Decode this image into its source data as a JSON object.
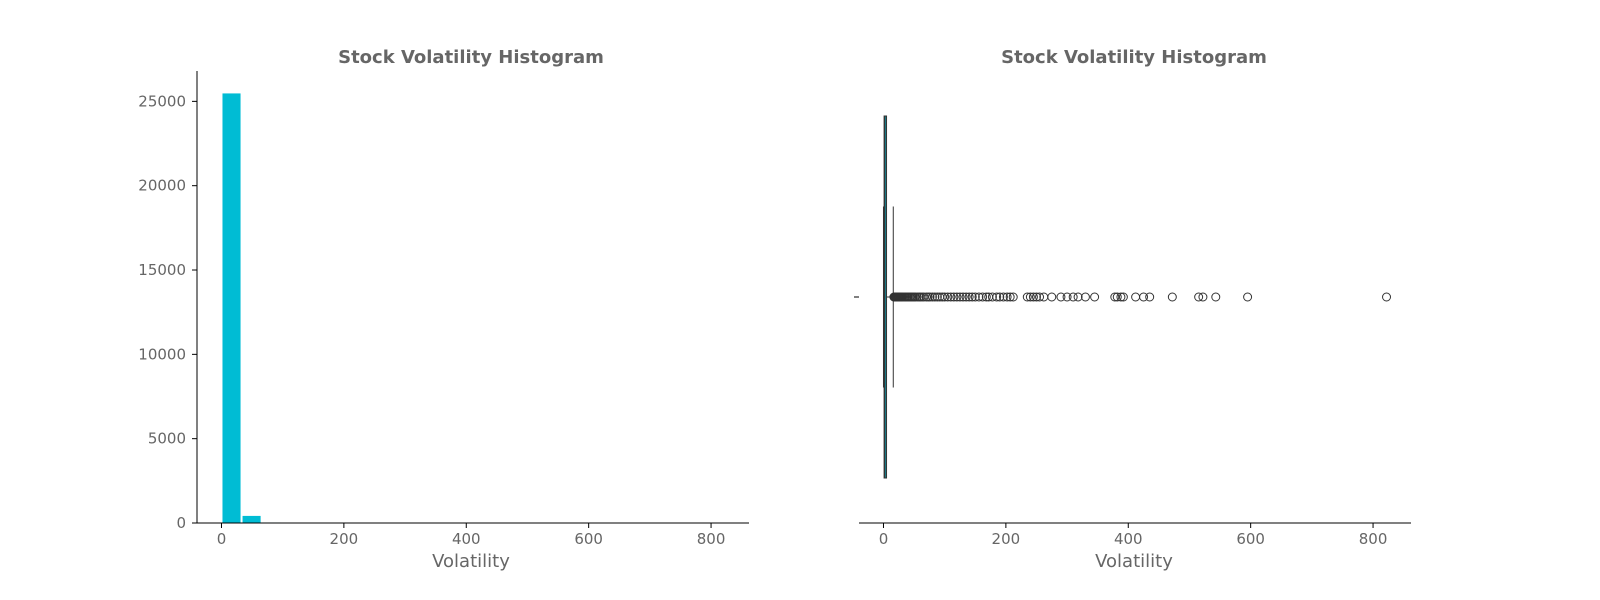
{
  "chart_data": [
    {
      "type": "bar",
      "title": "Stock Volatility Histogram",
      "xlabel": "Volatility",
      "ylabel": "",
      "xlim": [
        -40,
        862
      ],
      "ylim": [
        0,
        26800
      ],
      "x_ticks": [
        0,
        200,
        400,
        600,
        800
      ],
      "y_ticks": [
        0,
        5000,
        10000,
        15000,
        20000,
        25000
      ],
      "bin_width": 32.8,
      "bins": [
        {
          "x0": 0,
          "x1": 32.8,
          "count": 25500
        },
        {
          "x0": 32.8,
          "x1": 65.6,
          "count": 450
        },
        {
          "x0": 65.6,
          "x1": 98.4,
          "count": 60
        },
        {
          "x0": 98.4,
          "x1": 131.2,
          "count": 15
        },
        {
          "x0": 131.2,
          "x1": 164.0,
          "count": 8
        },
        {
          "x0": 164.0,
          "x1": 196.8,
          "count": 6
        },
        {
          "x0": 196.8,
          "x1": 229.6,
          "count": 4
        },
        {
          "x0": 229.6,
          "x1": 262.4,
          "count": 3
        },
        {
          "x0": 262.4,
          "x1": 295.2,
          "count": 2
        },
        {
          "x0": 295.2,
          "x1": 328.0,
          "count": 2
        },
        {
          "x0": 328.0,
          "x1": 360.8,
          "count": 2
        },
        {
          "x0": 360.8,
          "x1": 393.6,
          "count": 3
        },
        {
          "x0": 393.6,
          "x1": 426.4,
          "count": 2
        },
        {
          "x0": 426.4,
          "x1": 459.2,
          "count": 1
        },
        {
          "x0": 459.2,
          "x1": 492.0,
          "count": 1
        },
        {
          "x0": 492.0,
          "x1": 524.8,
          "count": 2
        },
        {
          "x0": 524.8,
          "x1": 557.6,
          "count": 1
        },
        {
          "x0": 590.4,
          "x1": 623.2,
          "count": 1
        },
        {
          "x0": 820.0,
          "x1": 852.8,
          "count": 1
        }
      ],
      "color": "#00bcd4",
      "grid": false
    },
    {
      "type": "boxplot",
      "title": "Stock Volatility Histogram",
      "xlabel": "Volatility",
      "ylabel": "",
      "xlim": [
        -40,
        862
      ],
      "x_ticks": [
        0,
        200,
        400,
        600,
        800
      ],
      "y_tick_labels": [
        ""
      ],
      "box": {
        "whisker_low": 0,
        "q1": 1,
        "median": 2.5,
        "q3": 5,
        "whisker_high": 16
      },
      "outliers": [
        17,
        18,
        19,
        20,
        21,
        22,
        23,
        24,
        25,
        26,
        27,
        28,
        29,
        30,
        32,
        34,
        36,
        38,
        40,
        42,
        44,
        46,
        48,
        50,
        52,
        55,
        58,
        60,
        63,
        66,
        70,
        73,
        76,
        80,
        84,
        88,
        92,
        96,
        100,
        105,
        110,
        115,
        120,
        125,
        130,
        135,
        140,
        145,
        150,
        156,
        162,
        168,
        172,
        178,
        185,
        190,
        196,
        202,
        207,
        212,
        235,
        240,
        245,
        250,
        255,
        262,
        275,
        290,
        300,
        310,
        318,
        330,
        345,
        378,
        382,
        388,
        392,
        412,
        425,
        435,
        472,
        515,
        522,
        543,
        595,
        822
      ],
      "box_color": "#00bcd4",
      "edge_color": "#333333",
      "grid": false
    }
  ]
}
